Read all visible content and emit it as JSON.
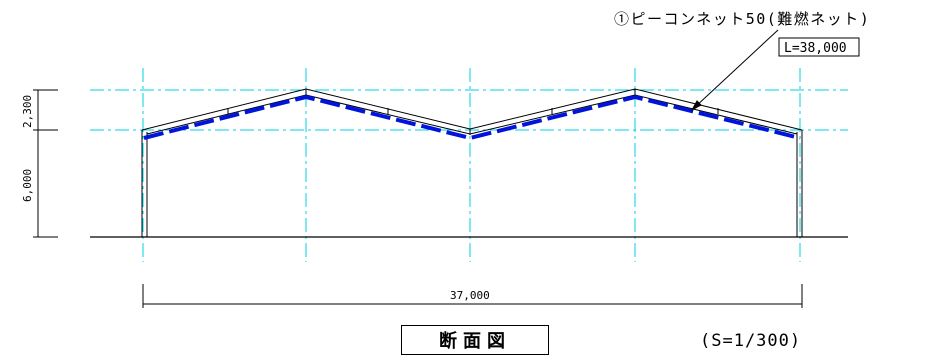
{
  "annotation": {
    "callout": "①ピーコンネット50(難燃ネット)",
    "length": "L=38,000"
  },
  "dimensions": {
    "total_width": "37,000",
    "eave_height": "6,000",
    "ridge_rise": "2,300"
  },
  "title": "断面図",
  "scale": "(S=1/300)",
  "colors": {
    "gridline": "#00d2e6",
    "net": "#0014dc",
    "structure": "#000000"
  }
}
